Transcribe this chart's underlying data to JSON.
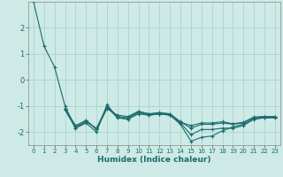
{
  "xlabel": "Humidex (Indice chaleur)",
  "background_color": "#ceeae6",
  "grid_color": "#aad4cf",
  "line_color": "#1a6b6b",
  "spine_color": "#888888",
  "xlim": [
    -0.5,
    23.5
  ],
  "ylim": [
    -2.5,
    3.0
  ],
  "yticks": [
    -2,
    -1,
    0,
    1,
    2
  ],
  "xticks": [
    0,
    1,
    2,
    3,
    4,
    5,
    6,
    7,
    8,
    9,
    10,
    11,
    12,
    13,
    14,
    15,
    16,
    17,
    18,
    19,
    20,
    21,
    22,
    23
  ],
  "series": [
    [
      3.0,
      1.3,
      0.5,
      -1.0,
      -1.85,
      -1.65,
      -2.0,
      -0.95,
      -1.45,
      -1.5,
      -1.25,
      -1.35,
      -1.3,
      -1.35,
      -1.7,
      -2.35,
      -2.2,
      -2.15,
      -1.95,
      -1.8,
      -1.7,
      -1.5,
      -1.45,
      -1.45
    ],
    [
      null,
      null,
      null,
      -1.1,
      -1.8,
      -1.55,
      -1.9,
      -1.1,
      -1.35,
      -1.4,
      -1.2,
      -1.3,
      -1.25,
      -1.3,
      -1.6,
      -1.85,
      -1.7,
      -1.7,
      -1.65,
      -1.7,
      -1.65,
      -1.45,
      -1.42,
      -1.42
    ],
    [
      null,
      null,
      null,
      -1.15,
      -1.85,
      -1.6,
      -1.85,
      -1.05,
      -1.45,
      -1.5,
      -1.3,
      -1.35,
      -1.3,
      -1.35,
      -1.65,
      -2.1,
      -1.9,
      -1.9,
      -1.85,
      -1.85,
      -1.75,
      -1.5,
      -1.45,
      -1.45
    ],
    [
      null,
      null,
      null,
      -1.1,
      -1.75,
      -1.55,
      -1.88,
      -1.0,
      -1.4,
      -1.45,
      -1.22,
      -1.3,
      -1.27,
      -1.3,
      -1.62,
      -1.75,
      -1.65,
      -1.65,
      -1.6,
      -1.68,
      -1.62,
      -1.42,
      -1.4,
      -1.4
    ]
  ]
}
